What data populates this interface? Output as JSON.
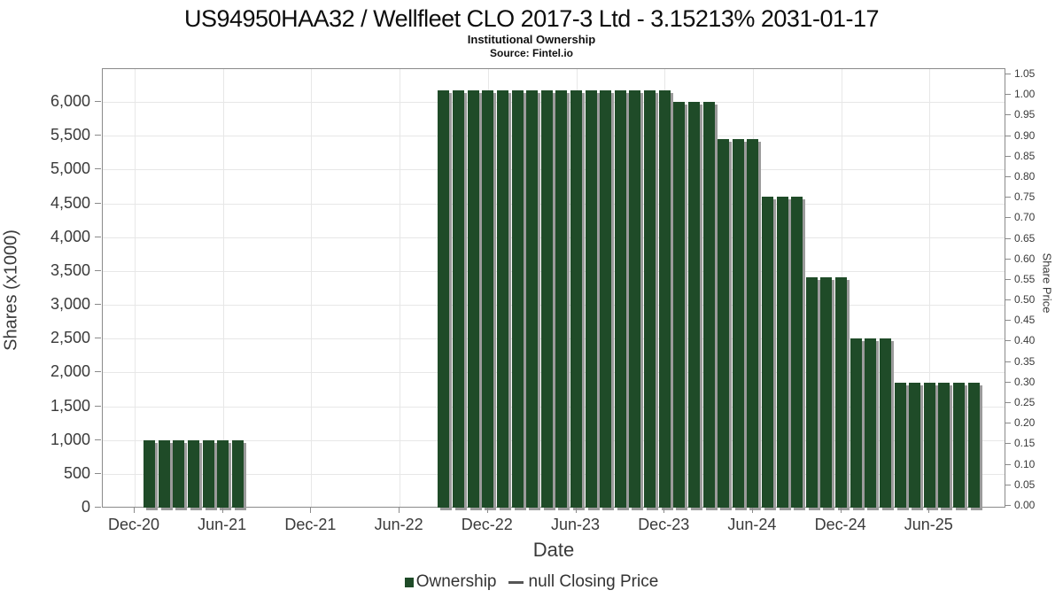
{
  "chart_data": {
    "type": "bar",
    "title": "US94950HAA32 / Wellfleet CLO 2017-3 Ltd - 3.15213% 2031-01-17",
    "subtitle": "Institutional Ownership",
    "source": "Source: Fintel.io",
    "xlabel": "Date",
    "ylabel_left": "Shares (x1000)",
    "ylabel_right": "Share Price",
    "x_tick_labels": [
      "Dec-20",
      "Jun-21",
      "Dec-21",
      "Jun-22",
      "Dec-22",
      "Jun-23",
      "Dec-23",
      "Jun-24",
      "Dec-24",
      "Jun-25"
    ],
    "y_left_axis": {
      "min": 0,
      "max": 6500,
      "tick_step": 500,
      "tick_max": 6000
    },
    "y_right_axis": {
      "min": 0.0,
      "max": 1.05,
      "tick_step": 0.05
    },
    "grid": true,
    "legend_position": "bottom",
    "bar_color": "#1f4b28",
    "bar_shadow_color": "#9b9b9b",
    "legend": [
      {
        "label": "Ownership",
        "marker": "square",
        "color": "#1f4b28"
      },
      {
        "label": "null Closing Price",
        "marker": "line",
        "color": "#555555"
      }
    ],
    "series": [
      {
        "name": "Ownership",
        "units": "shares x1000",
        "points": [
          {
            "date": "Jan-21",
            "value": 1000
          },
          {
            "date": "Feb-21",
            "value": 1000
          },
          {
            "date": "Mar-21",
            "value": 1000
          },
          {
            "date": "Apr-21",
            "value": 1000
          },
          {
            "date": "May-21",
            "value": 1000
          },
          {
            "date": "Jun-21",
            "value": 1000
          },
          {
            "date": "Jul-21",
            "value": 1000
          },
          {
            "date": "Sep-22",
            "value": 6175
          },
          {
            "date": "Oct-22",
            "value": 6175
          },
          {
            "date": "Nov-22",
            "value": 6175
          },
          {
            "date": "Dec-22",
            "value": 6175
          },
          {
            "date": "Jan-23",
            "value": 6175
          },
          {
            "date": "Feb-23",
            "value": 6175
          },
          {
            "date": "Mar-23",
            "value": 6175
          },
          {
            "date": "Apr-23",
            "value": 6175
          },
          {
            "date": "May-23",
            "value": 6175
          },
          {
            "date": "Jun-23",
            "value": 6175
          },
          {
            "date": "Jul-23",
            "value": 6175
          },
          {
            "date": "Aug-23",
            "value": 6175
          },
          {
            "date": "Sep-23",
            "value": 6175
          },
          {
            "date": "Oct-23",
            "value": 6175
          },
          {
            "date": "Nov-23",
            "value": 6175
          },
          {
            "date": "Dec-23",
            "value": 6175
          },
          {
            "date": "Jan-24",
            "value": 6000
          },
          {
            "date": "Feb-24",
            "value": 6000
          },
          {
            "date": "Mar-24",
            "value": 6000
          },
          {
            "date": "Apr-24",
            "value": 5450
          },
          {
            "date": "May-24",
            "value": 5450
          },
          {
            "date": "Jun-24",
            "value": 5450
          },
          {
            "date": "Jul-24",
            "value": 4600
          },
          {
            "date": "Aug-24",
            "value": 4600
          },
          {
            "date": "Sep-24",
            "value": 4600
          },
          {
            "date": "Oct-24",
            "value": 3400
          },
          {
            "date": "Nov-24",
            "value": 3400
          },
          {
            "date": "Dec-24",
            "value": 3400
          },
          {
            "date": "Jan-25",
            "value": 2500
          },
          {
            "date": "Feb-25",
            "value": 2500
          },
          {
            "date": "Mar-25",
            "value": 2500
          },
          {
            "date": "Apr-25",
            "value": 1850
          },
          {
            "date": "May-25",
            "value": 1850
          },
          {
            "date": "Jun-25",
            "value": 1850
          },
          {
            "date": "Jul-25",
            "value": 1850
          },
          {
            "date": "Aug-25",
            "value": 1850
          },
          {
            "date": "Sep-25",
            "value": 1850
          }
        ]
      }
    ]
  }
}
